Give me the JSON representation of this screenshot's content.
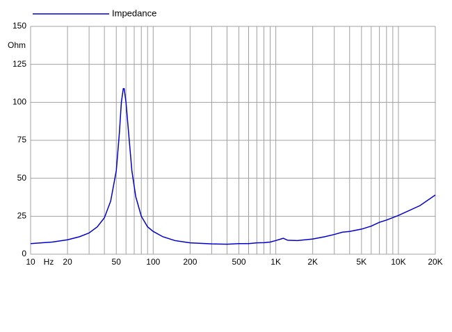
{
  "chart_data": {
    "type": "line",
    "x_label": "Hz",
    "y_label": "Ohm",
    "xscale": "log",
    "xlim": [
      10,
      20000
    ],
    "ylim": [
      0,
      150
    ],
    "xticks": [
      10,
      20,
      50,
      100,
      200,
      500,
      {
        "value": 1000,
        "label": "1K"
      },
      {
        "value": 2000,
        "label": "2K"
      },
      {
        "value": 5000,
        "label": "5K"
      },
      {
        "value": 10000,
        "label": "10K"
      },
      {
        "value": 20000,
        "label": "20K"
      }
    ],
    "xminor": [
      30,
      40,
      60,
      70,
      80,
      90,
      300,
      400,
      600,
      700,
      800,
      900,
      3000,
      4000,
      6000,
      7000,
      8000,
      9000
    ],
    "yticks": [
      0,
      25,
      50,
      75,
      100,
      125,
      150
    ],
    "grid": true,
    "legend": "top-left",
    "x": [
      10,
      15,
      20,
      25,
      30,
      35,
      40,
      45,
      50,
      53,
      55,
      57,
      58,
      60,
      63,
      67,
      72,
      80,
      90,
      100,
      120,
      150,
      200,
      300,
      400,
      500,
      600,
      700,
      800,
      900,
      1000,
      1100,
      1150,
      1250,
      1500,
      2000,
      2500,
      3000,
      3500,
      4000,
      5000,
      6000,
      7000,
      8000,
      10000,
      15000,
      20000
    ],
    "series": [
      {
        "name": "Impedance",
        "color": "#0000cc",
        "values": [
          7,
          8,
          9.5,
          11.5,
          14,
          18,
          24,
          35,
          55,
          80,
          100,
          109,
          109,
          100,
          80,
          55,
          38,
          25,
          18,
          15,
          11.5,
          9,
          7.5,
          6.8,
          6.6,
          7,
          7,
          7.5,
          7.6,
          8,
          9,
          10,
          10.5,
          9.2,
          9,
          10,
          11.5,
          13,
          14.5,
          15,
          16.5,
          18.5,
          21,
          22.5,
          25.5,
          32,
          39
        ]
      }
    ]
  }
}
